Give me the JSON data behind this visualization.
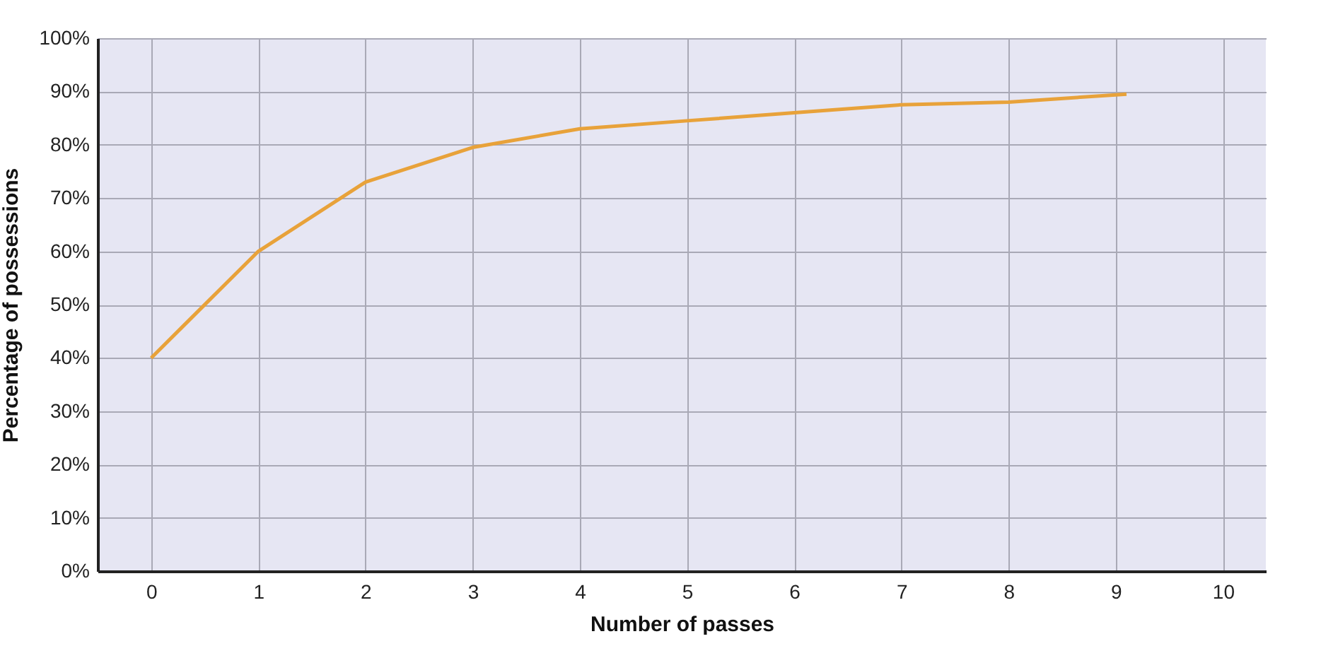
{
  "chart_data": {
    "type": "line",
    "xlabel": "Number of passes",
    "ylabel": "Percentage of possessions",
    "x": [
      0,
      1,
      2,
      3,
      4,
      5,
      6,
      7,
      8,
      9.1
    ],
    "series": [
      {
        "color": "#e8a23a",
        "values": [
          40,
          60,
          73,
          79.5,
          83,
          84.5,
          86,
          87.5,
          88,
          89.5
        ]
      }
    ],
    "xlim": [
      -0.5,
      10.4
    ],
    "xticks": [
      0,
      1,
      2,
      3,
      4,
      5,
      6,
      7,
      8,
      9,
      10
    ],
    "ylim": [
      0,
      100
    ],
    "yticks": [
      {
        "value": 0,
        "label": "0%"
      },
      {
        "value": 10,
        "label": "10%"
      },
      {
        "value": 20,
        "label": "20%"
      },
      {
        "value": 30,
        "label": "30%"
      },
      {
        "value": 40,
        "label": "40%"
      },
      {
        "value": 50,
        "label": "50%"
      },
      {
        "value": 60,
        "label": "60%"
      },
      {
        "value": 70,
        "label": "70%"
      },
      {
        "value": 80,
        "label": "80%"
      },
      {
        "value": 90,
        "label": "90%"
      },
      {
        "value": 100,
        "label": "100%"
      }
    ],
    "grid": true,
    "marker": "none",
    "line_style": "solid"
  }
}
